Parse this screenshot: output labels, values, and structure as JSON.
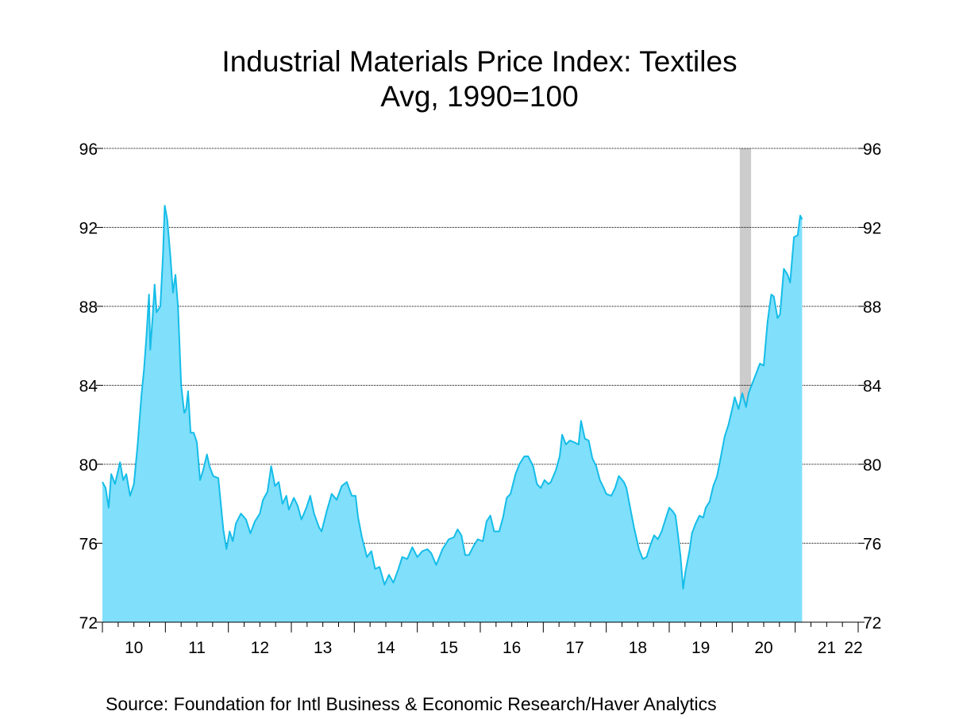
{
  "chart_data": {
    "type": "area",
    "title": "Industrial Materials Price Index: Textiles",
    "subtitle": "Avg, 1990=100",
    "source": "Source:  Foundation for Intl Business & Economic Research/Haver Analytics",
    "xlabel": "",
    "ylabel": "",
    "x_range": [
      2010.0,
      2022.0
    ],
    "ylim": [
      72,
      96
    ],
    "yticks": [
      72,
      76,
      80,
      84,
      88,
      92,
      96
    ],
    "ytick_labels": [
      "72",
      "76",
      "80",
      "84",
      "88",
      "92",
      "96"
    ],
    "xtick_labels": [
      "10",
      "11",
      "12",
      "13",
      "14",
      "15",
      "16",
      "17",
      "18",
      "19",
      "20",
      "21",
      "22"
    ],
    "grid": true,
    "fill_color": "#80dffb",
    "line_color": "#15bde8",
    "recession_color": "#cccccc",
    "recession_shading": [
      {
        "start": 2020.12,
        "end": 2020.3
      }
    ],
    "series": [
      {
        "values": [
          [
            2010.0,
            79.1
          ],
          [
            2010.05,
            78.8
          ],
          [
            2010.1,
            77.8
          ],
          [
            2010.14,
            79.5
          ],
          [
            2010.2,
            79.0
          ],
          [
            2010.28,
            80.1
          ],
          [
            2010.33,
            79.2
          ],
          [
            2010.38,
            79.5
          ],
          [
            2010.44,
            78.4
          ],
          [
            2010.5,
            79.0
          ],
          [
            2010.56,
            81.0
          ],
          [
            2010.62,
            83.5
          ],
          [
            2010.66,
            84.8
          ],
          [
            2010.7,
            86.5
          ],
          [
            2010.74,
            88.6
          ],
          [
            2010.76,
            85.8
          ],
          [
            2010.8,
            87.6
          ],
          [
            2010.83,
            89.1
          ],
          [
            2010.86,
            87.7
          ],
          [
            2010.92,
            88.0
          ],
          [
            2010.96,
            90.5
          ],
          [
            2010.99,
            93.1
          ],
          [
            2011.03,
            92.4
          ],
          [
            2011.08,
            90.5
          ],
          [
            2011.12,
            88.7
          ],
          [
            2011.16,
            89.6
          ],
          [
            2011.2,
            88.0
          ],
          [
            2011.25,
            84.0
          ],
          [
            2011.3,
            82.6
          ],
          [
            2011.33,
            82.8
          ],
          [
            2011.36,
            83.7
          ],
          [
            2011.4,
            81.6
          ],
          [
            2011.45,
            81.6
          ],
          [
            2011.5,
            81.1
          ],
          [
            2011.55,
            79.2
          ],
          [
            2011.6,
            79.7
          ],
          [
            2011.66,
            80.5
          ],
          [
            2011.7,
            79.9
          ],
          [
            2011.76,
            79.4
          ],
          [
            2011.84,
            79.3
          ],
          [
            2011.92,
            76.7
          ],
          [
            2011.97,
            75.7
          ],
          [
            2012.02,
            76.6
          ],
          [
            2012.07,
            76.1
          ],
          [
            2012.12,
            77.0
          ],
          [
            2012.2,
            77.5
          ],
          [
            2012.28,
            77.2
          ],
          [
            2012.35,
            76.5
          ],
          [
            2012.42,
            77.1
          ],
          [
            2012.5,
            77.5
          ],
          [
            2012.55,
            78.2
          ],
          [
            2012.62,
            78.6
          ],
          [
            2012.68,
            79.9
          ],
          [
            2012.74,
            78.9
          ],
          [
            2012.8,
            79.1
          ],
          [
            2012.86,
            78.0
          ],
          [
            2012.92,
            78.4
          ],
          [
            2012.96,
            77.7
          ],
          [
            2013.04,
            78.3
          ],
          [
            2013.1,
            77.9
          ],
          [
            2013.16,
            77.2
          ],
          [
            2013.24,
            77.8
          ],
          [
            2013.3,
            78.4
          ],
          [
            2013.36,
            77.5
          ],
          [
            2013.44,
            76.8
          ],
          [
            2013.48,
            76.6
          ],
          [
            2013.56,
            77.6
          ],
          [
            2013.64,
            78.5
          ],
          [
            2013.72,
            78.2
          ],
          [
            2013.8,
            78.9
          ],
          [
            2013.88,
            79.1
          ],
          [
            2013.96,
            78.4
          ],
          [
            2014.02,
            78.4
          ],
          [
            2014.06,
            77.3
          ],
          [
            2014.12,
            76.3
          ],
          [
            2014.2,
            75.3
          ],
          [
            2014.27,
            75.6
          ],
          [
            2014.33,
            74.7
          ],
          [
            2014.4,
            74.8
          ],
          [
            2014.48,
            73.9
          ],
          [
            2014.55,
            74.4
          ],
          [
            2014.62,
            74.0
          ],
          [
            2014.7,
            74.7
          ],
          [
            2014.76,
            75.3
          ],
          [
            2014.84,
            75.2
          ],
          [
            2014.92,
            75.8
          ],
          [
            2015.0,
            75.3
          ],
          [
            2015.08,
            75.6
          ],
          [
            2015.16,
            75.7
          ],
          [
            2015.22,
            75.5
          ],
          [
            2015.3,
            74.9
          ],
          [
            2015.4,
            75.7
          ],
          [
            2015.5,
            76.2
          ],
          [
            2015.58,
            76.3
          ],
          [
            2015.64,
            76.7
          ],
          [
            2015.7,
            76.4
          ],
          [
            2015.76,
            75.4
          ],
          [
            2015.82,
            75.4
          ],
          [
            2015.9,
            75.9
          ],
          [
            2015.96,
            76.2
          ],
          [
            2016.04,
            76.1
          ],
          [
            2016.1,
            77.1
          ],
          [
            2016.16,
            77.4
          ],
          [
            2016.22,
            76.6
          ],
          [
            2016.3,
            76.6
          ],
          [
            2016.36,
            77.3
          ],
          [
            2016.42,
            78.3
          ],
          [
            2016.48,
            78.5
          ],
          [
            2016.56,
            79.5
          ],
          [
            2016.62,
            80.0
          ],
          [
            2016.7,
            80.4
          ],
          [
            2016.76,
            80.4
          ],
          [
            2016.84,
            79.9
          ],
          [
            2016.9,
            79.0
          ],
          [
            2016.96,
            78.8
          ],
          [
            2017.02,
            79.2
          ],
          [
            2017.08,
            79.0
          ],
          [
            2017.12,
            79.1
          ],
          [
            2017.2,
            79.7
          ],
          [
            2017.26,
            80.4
          ],
          [
            2017.3,
            81.5
          ],
          [
            2017.36,
            81.0
          ],
          [
            2017.42,
            81.2
          ],
          [
            2017.5,
            81.1
          ],
          [
            2017.56,
            81.0
          ],
          [
            2017.6,
            82.2
          ],
          [
            2017.66,
            81.3
          ],
          [
            2017.72,
            81.2
          ],
          [
            2017.78,
            80.3
          ],
          [
            2017.84,
            79.9
          ],
          [
            2017.9,
            79.2
          ],
          [
            2017.96,
            78.8
          ],
          [
            2018.0,
            78.5
          ],
          [
            2018.08,
            78.4
          ],
          [
            2018.14,
            78.8
          ],
          [
            2018.2,
            79.4
          ],
          [
            2018.28,
            79.1
          ],
          [
            2018.32,
            78.8
          ],
          [
            2018.38,
            77.8
          ],
          [
            2018.44,
            76.8
          ],
          [
            2018.52,
            75.7
          ],
          [
            2018.58,
            75.2
          ],
          [
            2018.64,
            75.3
          ],
          [
            2018.7,
            75.9
          ],
          [
            2018.76,
            76.4
          ],
          [
            2018.82,
            76.2
          ],
          [
            2018.88,
            76.6
          ],
          [
            2018.94,
            77.2
          ],
          [
            2019.0,
            77.8
          ],
          [
            2019.06,
            77.6
          ],
          [
            2019.1,
            77.4
          ],
          [
            2019.14,
            76.4
          ],
          [
            2019.18,
            75.3
          ],
          [
            2019.22,
            73.7
          ],
          [
            2019.26,
            74.6
          ],
          [
            2019.32,
            75.6
          ],
          [
            2019.36,
            76.5
          ],
          [
            2019.42,
            77.0
          ],
          [
            2019.48,
            77.4
          ],
          [
            2019.54,
            77.3
          ],
          [
            2019.58,
            77.8
          ],
          [
            2019.64,
            78.1
          ],
          [
            2019.7,
            78.9
          ],
          [
            2019.76,
            79.4
          ],
          [
            2019.82,
            80.4
          ],
          [
            2019.88,
            81.4
          ],
          [
            2019.94,
            82.0
          ],
          [
            2020.0,
            82.8
          ],
          [
            2020.04,
            83.4
          ],
          [
            2020.1,
            82.8
          ],
          [
            2020.16,
            83.6
          ],
          [
            2020.22,
            82.9
          ],
          [
            2020.26,
            83.6
          ],
          [
            2020.32,
            84.1
          ],
          [
            2020.38,
            84.6
          ],
          [
            2020.44,
            85.1
          ],
          [
            2020.5,
            85.0
          ],
          [
            2020.56,
            87.2
          ],
          [
            2020.62,
            88.6
          ],
          [
            2020.66,
            88.5
          ],
          [
            2020.72,
            87.4
          ],
          [
            2020.76,
            87.6
          ],
          [
            2020.82,
            89.9
          ],
          [
            2020.88,
            89.6
          ],
          [
            2020.92,
            89.2
          ],
          [
            2020.98,
            91.5
          ],
          [
            2021.04,
            91.6
          ],
          [
            2021.08,
            92.6
          ],
          [
            2021.11,
            92.4
          ]
        ]
      }
    ]
  }
}
